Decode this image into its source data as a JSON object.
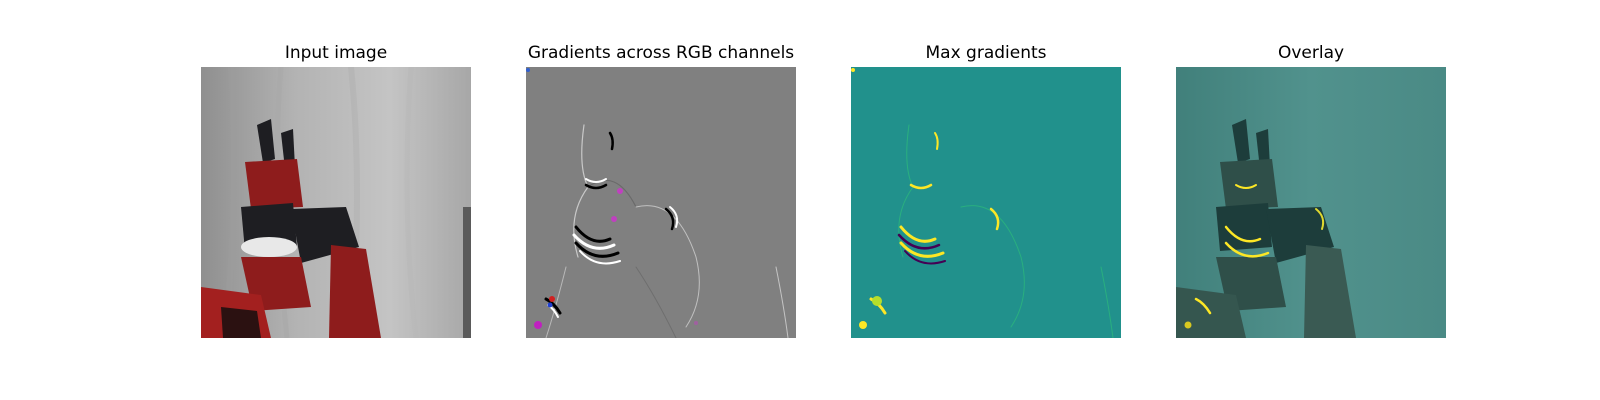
{
  "panels": [
    {
      "title": "Input image"
    },
    {
      "title": "Gradients across RGB channels"
    },
    {
      "title": "Max gradients"
    },
    {
      "title": "Overlay"
    }
  ],
  "colors": {
    "background": "#ffffff",
    "curtain": "#b9b9b9",
    "robot_red": "#8e1c1c",
    "robot_black": "#1e1e22",
    "gradient_gray": "#808080",
    "viridis_teal": "#21918c",
    "viridis_yellow": "#fde725",
    "overlay_teal": "#4f8d88"
  }
}
